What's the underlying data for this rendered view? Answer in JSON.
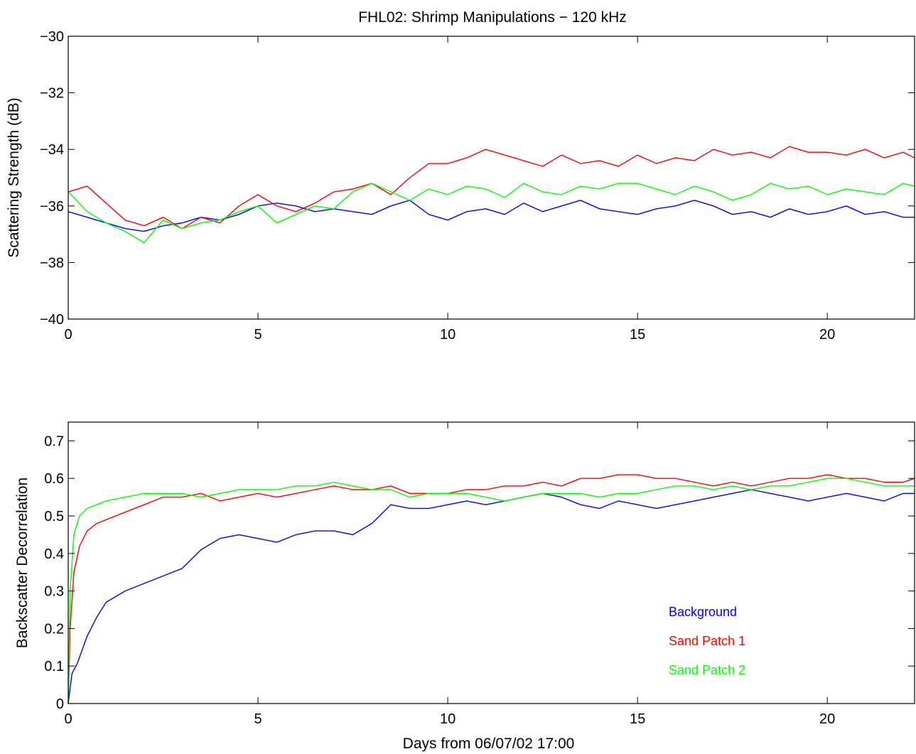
{
  "figure": {
    "title": "FHL02: Shrimp Manipulations − 120 kHz"
  },
  "chart_data": [
    {
      "type": "line",
      "title": "FHL02: Shrimp Manipulations − 120 kHz",
      "xlabel": "",
      "ylabel": "Scattering Strength (dB)",
      "xlim": [
        0,
        22.3
      ],
      "ylim": [
        -40,
        -30
      ],
      "xticks": [
        0,
        5,
        10,
        15,
        20
      ],
      "yticks": [
        -40,
        -38,
        -36,
        -34,
        -32,
        -30
      ],
      "ytick_labels": [
        "−40",
        "−38",
        "−36",
        "−34",
        "−32",
        "−30"
      ],
      "grid": false,
      "series": [
        {
          "name": "Background",
          "color": "#0000ff",
          "x": [
            0,
            0.5,
            1,
            1.5,
            2,
            2.5,
            3,
            3.5,
            4,
            4.5,
            5,
            5.5,
            6,
            6.5,
            7,
            7.5,
            8,
            8.5,
            9,
            9.5,
            10,
            10.5,
            11,
            11.5,
            12,
            12.5,
            13,
            13.5,
            14,
            14.5,
            15,
            15.5,
            16,
            16.5,
            17,
            17.5,
            18,
            18.5,
            19,
            19.5,
            20,
            20.5,
            21,
            21.5,
            22,
            22.3
          ],
          "y": [
            -36.2,
            -36.4,
            -36.6,
            -36.8,
            -36.9,
            -36.7,
            -36.6,
            -36.4,
            -36.5,
            -36.3,
            -36.0,
            -35.9,
            -36.0,
            -36.2,
            -36.1,
            -36.2,
            -36.3,
            -36.0,
            -35.8,
            -36.3,
            -36.5,
            -36.2,
            -36.1,
            -36.3,
            -35.9,
            -36.2,
            -36.0,
            -35.8,
            -36.1,
            -36.2,
            -36.3,
            -36.1,
            -36.0,
            -35.8,
            -36.0,
            -36.3,
            -36.2,
            -36.4,
            -36.1,
            -36.3,
            -36.2,
            -36.0,
            -36.3,
            -36.2,
            -36.4,
            -36.4
          ]
        },
        {
          "name": "Sand Patch 1",
          "color": "#ff0000",
          "x": [
            0,
            0.5,
            1,
            1.5,
            2,
            2.5,
            3,
            3.5,
            4,
            4.5,
            5,
            5.5,
            6,
            6.5,
            7,
            7.5,
            8,
            8.5,
            9,
            9.5,
            10,
            10.5,
            11,
            11.5,
            12,
            12.5,
            13,
            13.5,
            14,
            14.5,
            15,
            15.5,
            16,
            16.5,
            17,
            17.5,
            18,
            18.5,
            19,
            19.5,
            20,
            20.5,
            21,
            21.5,
            22,
            22.3
          ],
          "y": [
            -35.5,
            -35.3,
            -35.9,
            -36.5,
            -36.7,
            -36.4,
            -36.8,
            -36.4,
            -36.6,
            -36.0,
            -35.6,
            -36.0,
            -36.2,
            -35.9,
            -35.5,
            -35.4,
            -35.2,
            -35.6,
            -35.0,
            -34.5,
            -34.5,
            -34.3,
            -34.0,
            -34.2,
            -34.4,
            -34.6,
            -34.2,
            -34.5,
            -34.4,
            -34.6,
            -34.2,
            -34.5,
            -34.3,
            -34.4,
            -34.0,
            -34.2,
            -34.1,
            -34.3,
            -33.9,
            -34.1,
            -34.1,
            -34.2,
            -34.0,
            -34.3,
            -34.1,
            -34.3
          ]
        },
        {
          "name": "Sand Patch 2",
          "color": "#00ff00",
          "x": [
            0,
            0.5,
            1,
            1.5,
            2,
            2.5,
            3,
            3.5,
            4,
            4.5,
            5,
            5.5,
            6,
            6.5,
            7,
            7.5,
            8,
            8.5,
            9,
            9.5,
            10,
            10.5,
            11,
            11.5,
            12,
            12.5,
            13,
            13.5,
            14,
            14.5,
            15,
            15.5,
            16,
            16.5,
            17,
            17.5,
            18,
            18.5,
            19,
            19.5,
            20,
            20.5,
            21,
            21.5,
            22,
            22.3
          ],
          "y": [
            -35.5,
            -36.2,
            -36.6,
            -36.9,
            -37.3,
            -36.5,
            -36.8,
            -36.6,
            -36.5,
            -36.2,
            -36.0,
            -36.6,
            -36.3,
            -36.0,
            -36.1,
            -35.5,
            -35.2,
            -35.5,
            -35.8,
            -35.4,
            -35.6,
            -35.3,
            -35.4,
            -35.7,
            -35.2,
            -35.5,
            -35.6,
            -35.3,
            -35.4,
            -35.2,
            -35.2,
            -35.4,
            -35.6,
            -35.3,
            -35.5,
            -35.8,
            -35.6,
            -35.2,
            -35.4,
            -35.3,
            -35.6,
            -35.4,
            -35.5,
            -35.6,
            -35.2,
            -35.3
          ]
        }
      ]
    },
    {
      "type": "line",
      "title": "",
      "xlabel": "Days from 06/07/02 17:00",
      "ylabel": "Backscatter Decorrelation",
      "xlim": [
        0,
        22.3
      ],
      "ylim": [
        0,
        0.75
      ],
      "xticks": [
        0,
        5,
        10,
        15,
        20
      ],
      "yticks": [
        0,
        0.1,
        0.2,
        0.3,
        0.4,
        0.5,
        0.6,
        0.7
      ],
      "ytick_labels": [
        "0",
        "0.1",
        "0.2",
        "0.3",
        "0.4",
        "0.5",
        "0.6",
        "0.7"
      ],
      "grid": false,
      "legend": {
        "placement": "bottom-right-inside"
      },
      "series": [
        {
          "name": "Background",
          "color": "#0000ff",
          "x": [
            0,
            0.1,
            0.25,
            0.5,
            0.75,
            1,
            1.5,
            2,
            2.5,
            3,
            3.5,
            4,
            4.5,
            5,
            5.5,
            6,
            6.5,
            7,
            7.5,
            8,
            8.5,
            9,
            9.5,
            10,
            10.5,
            11,
            11.5,
            12,
            12.5,
            13,
            13.5,
            14,
            14.5,
            15,
            15.5,
            16,
            16.5,
            17,
            17.5,
            18,
            18.5,
            19,
            19.5,
            20,
            20.5,
            21,
            21.5,
            22,
            22.3
          ],
          "y": [
            0.0,
            0.08,
            0.11,
            0.18,
            0.23,
            0.27,
            0.3,
            0.32,
            0.34,
            0.36,
            0.41,
            0.44,
            0.45,
            0.44,
            0.43,
            0.45,
            0.46,
            0.46,
            0.45,
            0.48,
            0.53,
            0.52,
            0.52,
            0.53,
            0.54,
            0.53,
            0.54,
            0.55,
            0.56,
            0.55,
            0.53,
            0.52,
            0.54,
            0.53,
            0.52,
            0.53,
            0.54,
            0.55,
            0.56,
            0.57,
            0.56,
            0.55,
            0.54,
            0.55,
            0.56,
            0.55,
            0.54,
            0.56,
            0.56
          ]
        },
        {
          "name": "Sand Patch 1",
          "color": "#ff0000",
          "x": [
            0,
            0.05,
            0.15,
            0.3,
            0.5,
            0.75,
            1,
            1.5,
            2,
            2.5,
            3,
            3.5,
            4,
            4.5,
            5,
            5.5,
            6,
            6.5,
            7,
            7.5,
            8,
            8.5,
            9,
            9.5,
            10,
            10.5,
            11,
            11.5,
            12,
            12.5,
            13,
            13.5,
            14,
            14.5,
            15,
            15.5,
            16,
            16.5,
            17,
            17.5,
            18,
            18.5,
            19,
            19.5,
            20,
            20.5,
            21,
            21.5,
            22,
            22.3
          ],
          "y": [
            0.0,
            0.2,
            0.35,
            0.42,
            0.46,
            0.48,
            0.49,
            0.51,
            0.53,
            0.55,
            0.55,
            0.56,
            0.54,
            0.55,
            0.56,
            0.55,
            0.56,
            0.57,
            0.58,
            0.57,
            0.57,
            0.58,
            0.56,
            0.56,
            0.56,
            0.57,
            0.57,
            0.58,
            0.58,
            0.59,
            0.58,
            0.6,
            0.6,
            0.61,
            0.61,
            0.6,
            0.6,
            0.59,
            0.58,
            0.59,
            0.58,
            0.59,
            0.6,
            0.6,
            0.61,
            0.6,
            0.6,
            0.59,
            0.59,
            0.6
          ]
        },
        {
          "name": "Sand Patch 2",
          "color": "#00ff00",
          "x": [
            0,
            0.05,
            0.15,
            0.3,
            0.5,
            0.75,
            1,
            1.5,
            2,
            2.5,
            3,
            3.5,
            4,
            4.5,
            5,
            5.5,
            6,
            6.5,
            7,
            7.5,
            8,
            8.5,
            9,
            9.5,
            10,
            10.5,
            11,
            11.5,
            12,
            12.5,
            13,
            13.5,
            14,
            14.5,
            15,
            15.5,
            16,
            16.5,
            17,
            17.5,
            18,
            18.5,
            19,
            19.5,
            20,
            20.5,
            21,
            21.5,
            22,
            22.3
          ],
          "y": [
            0.0,
            0.3,
            0.45,
            0.5,
            0.52,
            0.53,
            0.54,
            0.55,
            0.56,
            0.56,
            0.56,
            0.55,
            0.56,
            0.57,
            0.57,
            0.57,
            0.58,
            0.58,
            0.59,
            0.58,
            0.57,
            0.57,
            0.55,
            0.56,
            0.56,
            0.56,
            0.55,
            0.54,
            0.55,
            0.56,
            0.56,
            0.56,
            0.55,
            0.56,
            0.56,
            0.57,
            0.58,
            0.58,
            0.57,
            0.58,
            0.57,
            0.58,
            0.58,
            0.59,
            0.6,
            0.6,
            0.59,
            0.58,
            0.58,
            0.58
          ]
        }
      ]
    }
  ]
}
